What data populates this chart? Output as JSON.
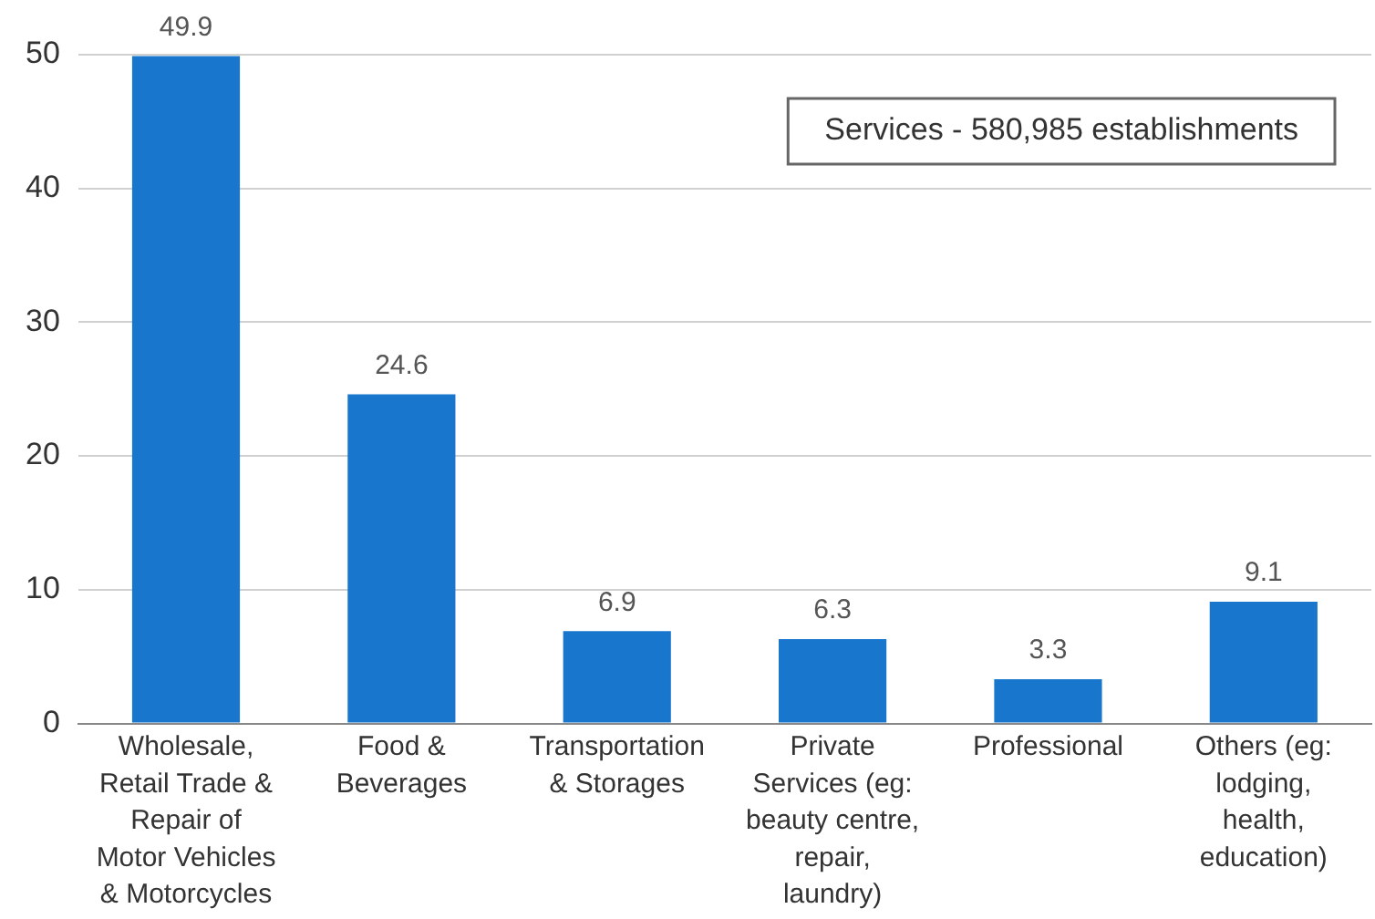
{
  "chart_data": {
    "type": "bar",
    "categories": [
      "Wholesale, Retail Trade & Repair of Motor Vehicles & Motorcycles",
      "Food & Beverages",
      "Transportation & Storages",
      "Private Services (eg: beauty centre, repair, laundry)",
      "Professional",
      "Others (eg: lodging, health, education)"
    ],
    "values": [
      49.9,
      24.6,
      6.9,
      6.3,
      3.3,
      9.1
    ],
    "color": "#1877cc",
    "ylim": [
      0,
      50
    ],
    "yticks": [
      0,
      10,
      20,
      30,
      40,
      50
    ],
    "grid": "y",
    "legend": false,
    "data_labels": true,
    "annotations": [
      "Services - 580,985 establishments"
    ]
  }
}
